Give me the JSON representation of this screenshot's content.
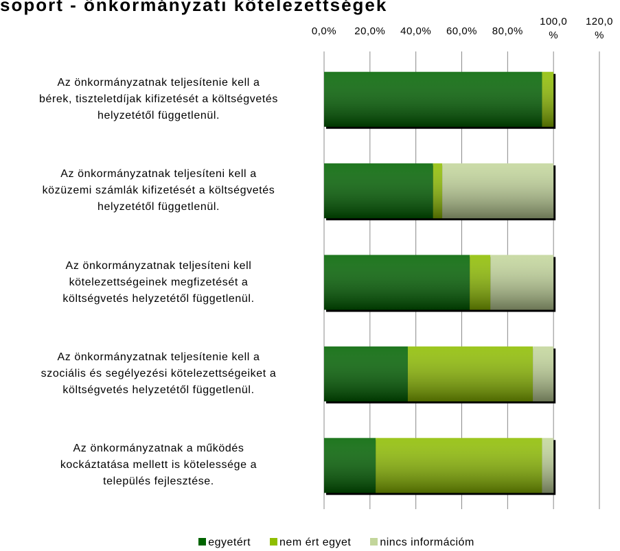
{
  "chart_data": {
    "type": "stacked_bar_horizontal",
    "title": "soport - önkormányzati kötelezettségek",
    "categories": [
      "Az önkormányzatnak teljesítenie kell a\nbérek, tiszteletdíjak kifizetését a költségvetés\nhelyzetétől függetlenül.",
      "Az önkormányzatnak teljesíteni kell a\nközüzemi számlák kifizetését a költségvetés\nhelyzetétől függetlenül.",
      "Az önkormányzatnak teljesíteni kell\nkötelezettségeinek megfizetését a\nköltségvetés helyzetétől függetlenül.",
      "Az önkormányzatnak teljesítenie kell a\nszociális és segélyezési kötelezettségeiket a\nköltségvetés helyzetétől függetlenül.",
      "Az önkormányzatnak a működés\nkockáztatása mellett is kötelessége a\ntelepülés fejlesztése."
    ],
    "series": [
      {
        "name": "egyetért",
        "color": "#006400",
        "values": [
          95,
          47.5,
          63.5,
          36.5,
          22.5
        ]
      },
      {
        "name": "nem ért egyet",
        "color": "#8fbe00",
        "values": [
          5,
          4,
          9,
          54.5,
          72.5
        ]
      },
      {
        "name": "nincs információm",
        "color": "#c3d69b",
        "values": [
          0,
          48.5,
          27.5,
          9,
          5
        ]
      }
    ],
    "xlim": [
      0,
      120
    ],
    "xticks": [
      {
        "value": 0,
        "label": "0,0%"
      },
      {
        "value": 20,
        "label": "20,0%"
      },
      {
        "value": 40,
        "label": "40,0%"
      },
      {
        "value": 60,
        "label": "60,0%"
      },
      {
        "value": 80,
        "label": "80,0%"
      },
      {
        "value": 100,
        "label": "100,0 %"
      },
      {
        "value": 120,
        "label": "120,0 %"
      }
    ],
    "grid": true
  }
}
